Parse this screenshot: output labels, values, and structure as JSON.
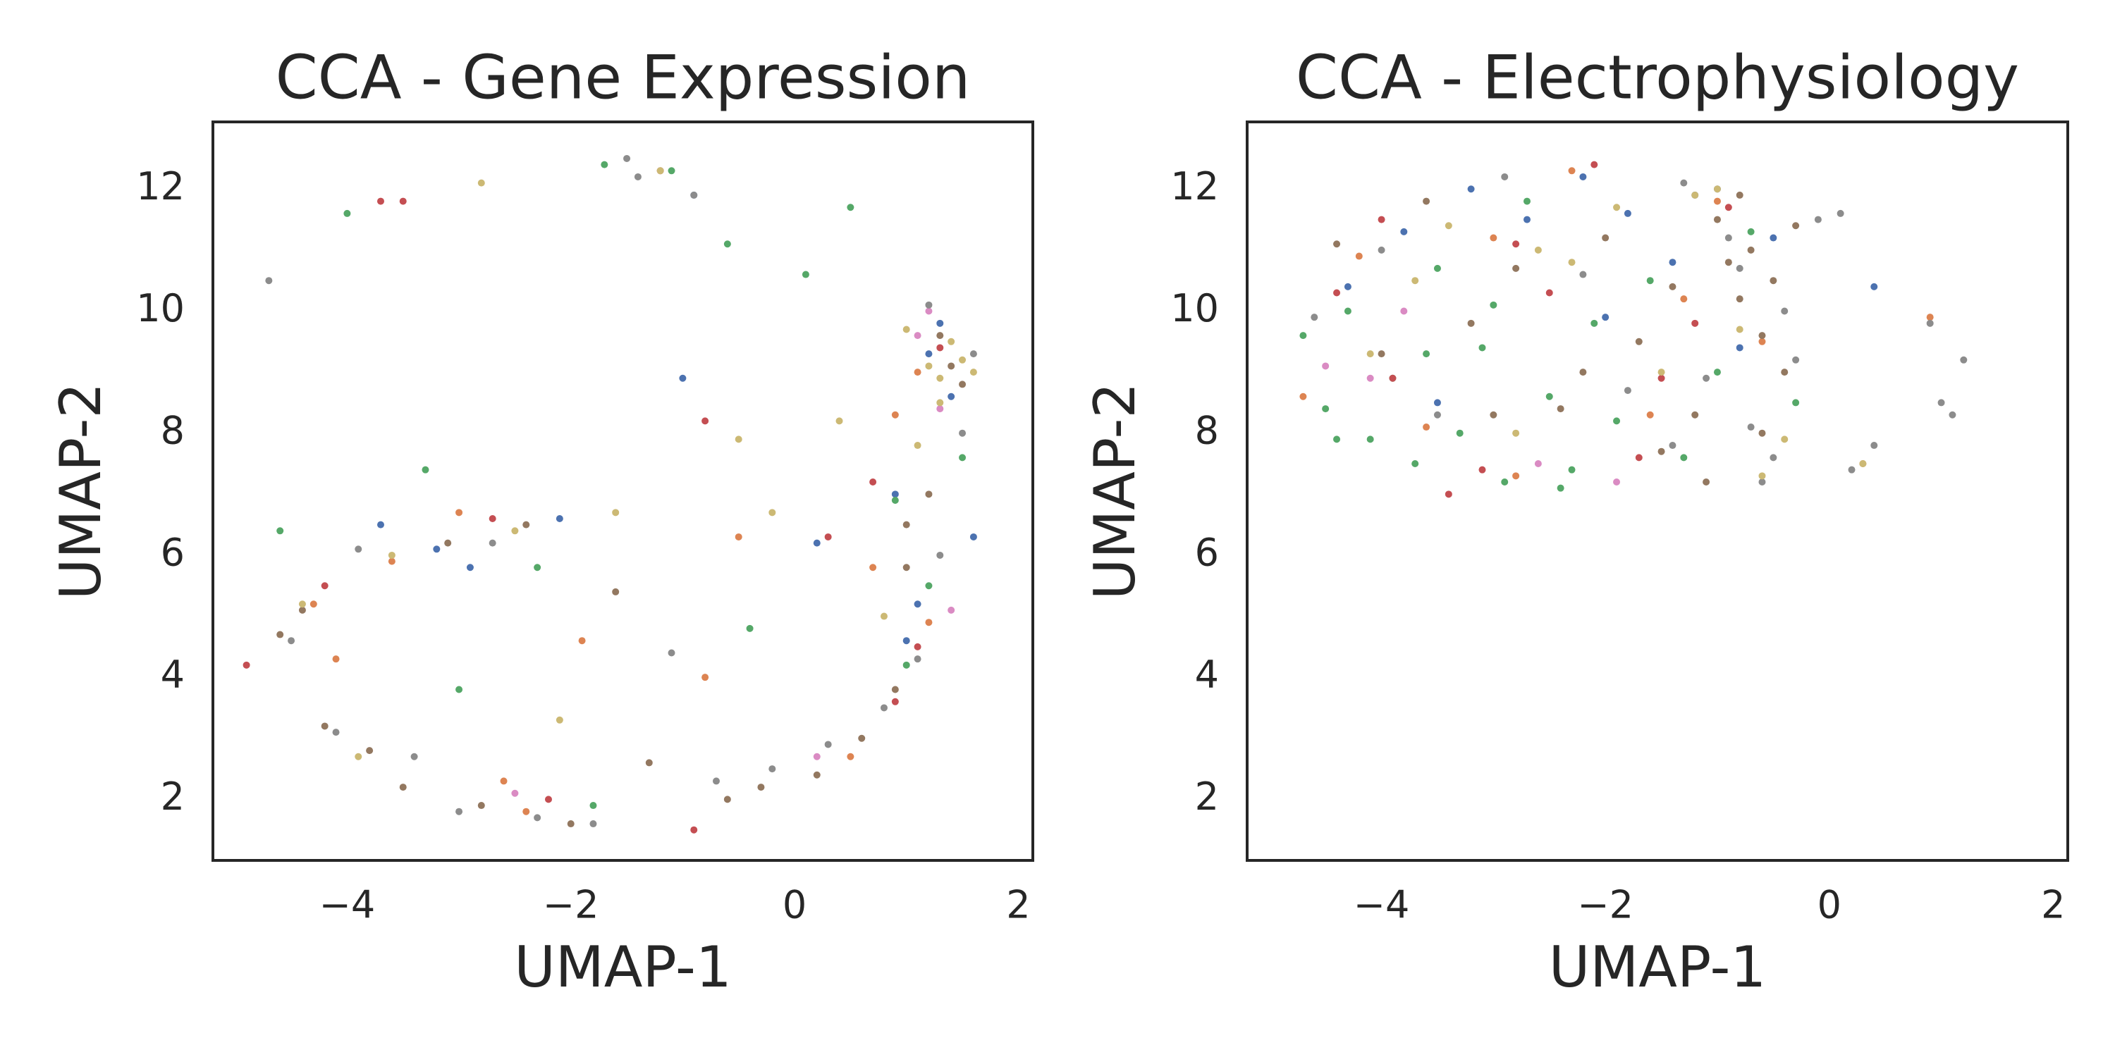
{
  "chart_data": [
    {
      "type": "scatter",
      "title": "CCA - Gene Expression",
      "x_label": "UMAP-1",
      "y_label": "UMAP-2",
      "xlim": [
        -5.2,
        2.13
      ],
      "ylim": [
        1.0,
        13.1
      ],
      "xticks": [
        {
          "value": -4,
          "label": "−4"
        },
        {
          "value": -2,
          "label": "−2"
        },
        0,
        2
      ],
      "yticks": [
        2,
        4,
        6,
        8,
        10,
        12
      ],
      "series": [
        {
          "color": "#4c72b0",
          "x": [
            -3.7,
            -3.2,
            -2.1,
            -1.0,
            -0.9,
            0.2,
            0.9,
            1.2,
            1.4,
            1.6,
            1.1,
            1.3,
            -2.9,
            1.0
          ],
          "values": [
            6.5,
            6.1,
            6.6,
            8.9,
            11.9,
            6.2,
            7.0,
            9.3,
            8.6,
            6.3,
            5.2,
            9.8,
            5.8,
            4.6
          ]
        },
        {
          "color": "#dd8452",
          "x": [
            -4.3,
            -4.1,
            -3.0,
            -2.6,
            -1.9,
            -0.8,
            -0.5,
            0.7,
            0.9,
            1.2,
            -2.4,
            0.5,
            1.1,
            -3.6
          ],
          "values": [
            5.2,
            4.3,
            6.7,
            2.3,
            4.6,
            4.0,
            6.3,
            5.8,
            8.3,
            4.9,
            1.8,
            2.7,
            9.0,
            5.9
          ]
        },
        {
          "color": "#55a868",
          "x": [
            -4.6,
            -4.0,
            -3.3,
            -2.3,
            -1.7,
            -1.1,
            -0.6,
            -0.4,
            0.1,
            0.5,
            0.9,
            1.0,
            1.2,
            1.5,
            -1.8,
            -3.0
          ],
          "values": [
            6.4,
            11.6,
            7.4,
            5.8,
            12.4,
            12.3,
            11.1,
            4.8,
            10.6,
            11.7,
            6.9,
            4.2,
            5.5,
            7.6,
            1.9,
            3.8
          ]
        },
        {
          "color": "#c44e52",
          "x": [
            -4.9,
            -3.5,
            -3.7,
            -2.7,
            -1.2,
            -0.9,
            -0.8,
            0.3,
            0.9,
            1.1,
            1.3,
            -4.2,
            -2.2,
            0.7
          ],
          "values": [
            4.2,
            11.8,
            11.8,
            6.6,
            12.3,
            1.5,
            8.2,
            6.3,
            3.6,
            4.5,
            9.4,
            5.5,
            2.0,
            7.2
          ]
        },
        {
          "color": "#da8bc3",
          "x": [
            1.1,
            1.2,
            1.4,
            0.2,
            -2.5,
            1.3
          ],
          "values": [
            9.6,
            10.0,
            5.1,
            2.7,
            2.1,
            8.4
          ]
        },
        {
          "color": "#937860",
          "x": [
            -4.6,
            -4.4,
            -4.2,
            -3.8,
            -3.5,
            -3.1,
            -2.8,
            -2.4,
            -2.0,
            -1.6,
            -1.3,
            -0.6,
            -0.3,
            0.2,
            0.6,
            0.9,
            1.0,
            1.2,
            1.4,
            1.5,
            1.0,
            1.3
          ],
          "values": [
            4.7,
            5.1,
            3.2,
            2.8,
            2.2,
            6.2,
            1.9,
            6.5,
            1.6,
            5.4,
            2.6,
            2.0,
            2.2,
            2.4,
            3.0,
            3.8,
            5.8,
            7.0,
            9.1,
            8.8,
            6.5,
            9.6
          ]
        },
        {
          "color": "#8c8c8c",
          "x": [
            -4.7,
            -4.5,
            -4.1,
            -3.9,
            -3.4,
            -3.0,
            -2.7,
            -2.3,
            -1.8,
            -1.5,
            -1.1,
            -0.7,
            -0.2,
            0.3,
            0.8,
            1.1,
            1.3,
            1.5,
            1.6,
            1.2,
            -1.4,
            -0.9
          ],
          "values": [
            10.5,
            4.6,
            3.1,
            6.1,
            2.7,
            1.8,
            6.2,
            1.7,
            1.6,
            12.5,
            4.4,
            2.3,
            2.5,
            2.9,
            3.5,
            4.3,
            6.0,
            8.0,
            9.3,
            10.1,
            12.2,
            11.9
          ]
        },
        {
          "color": "#ccb974",
          "x": [
            -4.4,
            -3.9,
            -3.6,
            -2.8,
            -2.5,
            -2.1,
            -1.6,
            -1.2,
            -0.5,
            -0.2,
            0.4,
            0.8,
            1.0,
            1.2,
            1.3,
            1.4,
            1.5,
            1.1,
            1.3,
            1.6
          ],
          "values": [
            5.2,
            2.7,
            6.0,
            12.1,
            6.4,
            3.3,
            6.7,
            12.3,
            7.9,
            6.7,
            8.2,
            5.0,
            9.7,
            9.1,
            8.9,
            9.5,
            9.2,
            7.8,
            8.5,
            9.0
          ]
        }
      ]
    },
    {
      "type": "scatter",
      "title": "CCA - Electrophysiology",
      "x_label": "UMAP-1",
      "y_label": "UMAP-2",
      "xlim": [
        -5.2,
        2.13
      ],
      "ylim": [
        1.0,
        13.1
      ],
      "xticks": [
        {
          "value": -4,
          "label": "−4"
        },
        {
          "value": -2,
          "label": "−2"
        },
        0,
        2
      ],
      "yticks": [
        2,
        4,
        6,
        8,
        10,
        12
      ],
      "series": [
        {
          "color": "#4c72b0",
          "x": [
            -4.3,
            -3.8,
            -3.2,
            -2.7,
            -2.2,
            -1.8,
            -1.4,
            -1.0,
            -0.8,
            -0.5,
            0.4,
            -3.5,
            -2.0,
            -1.2
          ],
          "values": [
            10.4,
            11.3,
            12.0,
            11.5,
            12.2,
            11.6,
            10.8,
            12.0,
            9.4,
            11.2,
            10.4,
            8.5,
            9.9,
            11.9
          ]
        },
        {
          "color": "#dd8452",
          "x": [
            -4.7,
            -4.2,
            -3.6,
            -3.0,
            -2.3,
            -1.6,
            -1.0,
            -0.6,
            0.3,
            0.9,
            -2.8,
            -1.3
          ],
          "values": [
            8.6,
            10.9,
            8.1,
            11.2,
            12.3,
            8.3,
            11.8,
            9.5,
            7.5,
            9.9,
            7.3,
            10.2
          ]
        },
        {
          "color": "#55a868",
          "x": [
            -4.7,
            -4.5,
            -4.3,
            -4.1,
            -3.9,
            -3.7,
            -3.5,
            -3.3,
            -3.1,
            -2.9,
            -2.7,
            -2.5,
            -2.3,
            -2.1,
            -1.9,
            -1.6,
            -1.3,
            -1.0,
            -0.7,
            -0.3,
            -4.4,
            -3.6,
            -3.0,
            -2.4
          ],
          "values": [
            9.6,
            8.4,
            10.0,
            7.9,
            8.9,
            7.5,
            10.7,
            8.0,
            9.4,
            7.2,
            11.8,
            8.6,
            7.4,
            9.8,
            8.2,
            10.5,
            7.6,
            9.0,
            11.3,
            8.5,
            7.9,
            9.3,
            10.1,
            7.1
          ]
        },
        {
          "color": "#c44e52",
          "x": [
            -4.4,
            -3.9,
            -3.4,
            -2.8,
            -2.1,
            -1.7,
            -1.2,
            -0.9,
            -3.1,
            -2.5,
            -4.0,
            -1.5
          ],
          "values": [
            10.3,
            8.9,
            7.0,
            11.1,
            12.4,
            7.6,
            9.8,
            11.7,
            7.4,
            10.3,
            11.5,
            8.9
          ]
        },
        {
          "color": "#da8bc3",
          "x": [
            -4.1,
            -3.8,
            -2.6,
            -1.9,
            -4.5
          ],
          "values": [
            8.9,
            10.0,
            7.5,
            7.2,
            9.1
          ]
        },
        {
          "color": "#937860",
          "x": [
            -4.4,
            -4.0,
            -3.6,
            -3.2,
            -2.8,
            -2.4,
            -2.0,
            -1.7,
            -1.4,
            -1.2,
            -1.0,
            -0.9,
            -0.8,
            -0.7,
            -0.6,
            -0.5,
            -0.4,
            -0.3,
            -1.5,
            -1.1,
            -0.8,
            -0.6,
            -2.2,
            -3.0
          ],
          "values": [
            11.1,
            9.3,
            11.8,
            9.8,
            10.7,
            8.4,
            11.2,
            9.5,
            10.4,
            8.3,
            11.5,
            10.8,
            10.2,
            11.0,
            9.6,
            10.5,
            9.0,
            11.4,
            7.7,
            7.2,
            11.9,
            8.0,
            9.0,
            8.3
          ]
        },
        {
          "color": "#8c8c8c",
          "x": [
            -4.6,
            -4.0,
            -3.5,
            -2.9,
            -2.2,
            -1.8,
            -1.4,
            -1.1,
            -0.9,
            -0.7,
            -0.5,
            -0.3,
            -0.1,
            0.2,
            0.4,
            -0.8,
            -0.4,
            0.1,
            0.9,
            1.0,
            1.1,
            1.2,
            -1.3,
            -0.6
          ],
          "values": [
            9.9,
            11.0,
            8.3,
            12.2,
            10.6,
            8.7,
            7.8,
            8.9,
            11.2,
            8.1,
            7.6,
            9.2,
            11.5,
            7.4,
            7.8,
            10.7,
            10.0,
            11.6,
            9.8,
            8.5,
            8.3,
            9.2,
            12.1,
            7.2
          ]
        },
        {
          "color": "#ccb974",
          "x": [
            -4.1,
            -3.4,
            -2.8,
            -2.3,
            -1.9,
            -1.5,
            -1.2,
            -1.0,
            -0.8,
            -0.6,
            -0.4,
            -2.6,
            -3.7,
            0.3
          ],
          "values": [
            9.3,
            11.4,
            8.0,
            10.8,
            11.7,
            9.0,
            11.9,
            12.0,
            9.7,
            7.3,
            7.9,
            11.0,
            10.5,
            7.5
          ]
        }
      ]
    }
  ]
}
